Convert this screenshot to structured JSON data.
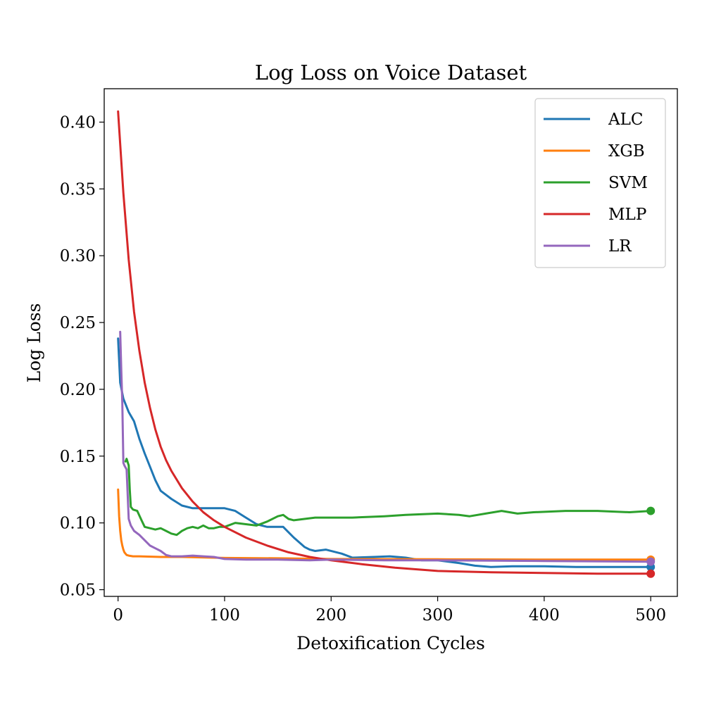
{
  "chart_data": {
    "type": "line",
    "title": "Log Loss on Voice Dataset",
    "xlabel": "Detoxification Cycles",
    "ylabel": "Log Loss",
    "xlim": [
      -13,
      525
    ],
    "ylim": [
      0.045,
      0.425
    ],
    "xticks": [
      0,
      100,
      200,
      300,
      400,
      500
    ],
    "yticks": [
      0.05,
      0.1,
      0.15,
      0.2,
      0.25,
      0.3,
      0.35,
      0.4
    ],
    "xtick_labels": [
      "0",
      "100",
      "200",
      "300",
      "400",
      "500"
    ],
    "ytick_labels": [
      "0.05",
      "0.10",
      "0.15",
      "0.20",
      "0.25",
      "0.30",
      "0.35",
      "0.40"
    ],
    "grid": false,
    "legend_position": "top-right",
    "series": [
      {
        "name": "ALC",
        "color": "#1f77b4",
        "end_marker": true,
        "points": [
          [
            0,
            0.238
          ],
          [
            2,
            0.205
          ],
          [
            5,
            0.193
          ],
          [
            10,
            0.183
          ],
          [
            15,
            0.176
          ],
          [
            20,
            0.163
          ],
          [
            25,
            0.152
          ],
          [
            30,
            0.142
          ],
          [
            35,
            0.132
          ],
          [
            40,
            0.124
          ],
          [
            45,
            0.121
          ],
          [
            50,
            0.118
          ],
          [
            60,
            0.113
          ],
          [
            70,
            0.111
          ],
          [
            100,
            0.111
          ],
          [
            110,
            0.109
          ],
          [
            120,
            0.104
          ],
          [
            130,
            0.099
          ],
          [
            140,
            0.097
          ],
          [
            155,
            0.097
          ],
          [
            165,
            0.089
          ],
          [
            175,
            0.082
          ],
          [
            180,
            0.08
          ],
          [
            185,
            0.079
          ],
          [
            195,
            0.08
          ],
          [
            210,
            0.077
          ],
          [
            220,
            0.074
          ],
          [
            240,
            0.0745
          ],
          [
            255,
            0.075
          ],
          [
            270,
            0.074
          ],
          [
            285,
            0.072
          ],
          [
            300,
            0.072
          ],
          [
            320,
            0.07
          ],
          [
            335,
            0.068
          ],
          [
            350,
            0.067
          ],
          [
            370,
            0.0675
          ],
          [
            400,
            0.0675
          ],
          [
            430,
            0.067
          ],
          [
            460,
            0.067
          ],
          [
            500,
            0.067
          ]
        ]
      },
      {
        "name": "XGB",
        "color": "#ff7f0e",
        "end_marker": true,
        "points": [
          [
            0,
            0.125
          ],
          [
            1,
            0.105
          ],
          [
            2,
            0.094
          ],
          [
            3,
            0.087
          ],
          [
            4,
            0.083
          ],
          [
            5,
            0.08
          ],
          [
            6,
            0.078
          ],
          [
            8,
            0.076
          ],
          [
            10,
            0.0755
          ],
          [
            14,
            0.075
          ],
          [
            20,
            0.075
          ],
          [
            40,
            0.0745
          ],
          [
            60,
            0.0745
          ],
          [
            100,
            0.0738
          ],
          [
            150,
            0.0735
          ],
          [
            200,
            0.073
          ],
          [
            300,
            0.0728
          ],
          [
            400,
            0.0725
          ],
          [
            500,
            0.0725
          ]
        ]
      },
      {
        "name": "SVM",
        "color": "#2ca02c",
        "end_marker": true,
        "points": [
          [
            7,
            0.146
          ],
          [
            8,
            0.148
          ],
          [
            10,
            0.143
          ],
          [
            11,
            0.125
          ],
          [
            12,
            0.112
          ],
          [
            14,
            0.11
          ],
          [
            18,
            0.109
          ],
          [
            22,
            0.102
          ],
          [
            25,
            0.097
          ],
          [
            30,
            0.096
          ],
          [
            35,
            0.095
          ],
          [
            40,
            0.096
          ],
          [
            45,
            0.094
          ],
          [
            50,
            0.092
          ],
          [
            55,
            0.091
          ],
          [
            60,
            0.094
          ],
          [
            65,
            0.096
          ],
          [
            70,
            0.097
          ],
          [
            75,
            0.096
          ],
          [
            80,
            0.098
          ],
          [
            85,
            0.096
          ],
          [
            90,
            0.096
          ],
          [
            95,
            0.097
          ],
          [
            100,
            0.097
          ],
          [
            110,
            0.1
          ],
          [
            120,
            0.099
          ],
          [
            130,
            0.098
          ],
          [
            140,
            0.101
          ],
          [
            150,
            0.105
          ],
          [
            155,
            0.106
          ],
          [
            160,
            0.103
          ],
          [
            165,
            0.102
          ],
          [
            175,
            0.103
          ],
          [
            185,
            0.104
          ],
          [
            200,
            0.104
          ],
          [
            220,
            0.104
          ],
          [
            250,
            0.105
          ],
          [
            270,
            0.106
          ],
          [
            300,
            0.107
          ],
          [
            320,
            0.106
          ],
          [
            330,
            0.105
          ],
          [
            345,
            0.107
          ],
          [
            360,
            0.109
          ],
          [
            375,
            0.107
          ],
          [
            390,
            0.108
          ],
          [
            420,
            0.109
          ],
          [
            450,
            0.109
          ],
          [
            480,
            0.108
          ],
          [
            500,
            0.109
          ]
        ]
      },
      {
        "name": "MLP",
        "color": "#d62728",
        "end_marker": true,
        "points": [
          [
            0,
            0.408
          ],
          [
            5,
            0.347
          ],
          [
            10,
            0.297
          ],
          [
            15,
            0.258
          ],
          [
            20,
            0.229
          ],
          [
            25,
            0.205
          ],
          [
            30,
            0.186
          ],
          [
            35,
            0.17
          ],
          [
            40,
            0.157
          ],
          [
            45,
            0.147
          ],
          [
            50,
            0.139
          ],
          [
            60,
            0.126
          ],
          [
            70,
            0.116
          ],
          [
            80,
            0.108
          ],
          [
            90,
            0.102
          ],
          [
            100,
            0.097
          ],
          [
            120,
            0.089
          ],
          [
            140,
            0.083
          ],
          [
            160,
            0.078
          ],
          [
            180,
            0.0745
          ],
          [
            200,
            0.072
          ],
          [
            230,
            0.069
          ],
          [
            260,
            0.0665
          ],
          [
            300,
            0.064
          ],
          [
            350,
            0.063
          ],
          [
            400,
            0.0625
          ],
          [
            450,
            0.062
          ],
          [
            500,
            0.062
          ]
        ]
      },
      {
        "name": "LR",
        "color": "#9467bd",
        "end_marker": true,
        "points": [
          [
            2,
            0.243
          ],
          [
            3,
            0.215
          ],
          [
            4,
            0.19
          ],
          [
            5,
            0.145
          ],
          [
            6,
            0.143
          ],
          [
            8,
            0.14
          ],
          [
            10,
            0.103
          ],
          [
            12,
            0.098
          ],
          [
            15,
            0.094
          ],
          [
            20,
            0.091
          ],
          [
            25,
            0.087
          ],
          [
            30,
            0.083
          ],
          [
            35,
            0.081
          ],
          [
            40,
            0.079
          ],
          [
            45,
            0.076
          ],
          [
            50,
            0.075
          ],
          [
            60,
            0.075
          ],
          [
            70,
            0.0755
          ],
          [
            80,
            0.075
          ],
          [
            90,
            0.0745
          ],
          [
            100,
            0.073
          ],
          [
            120,
            0.0725
          ],
          [
            150,
            0.0725
          ],
          [
            180,
            0.072
          ],
          [
            200,
            0.0725
          ],
          [
            250,
            0.072
          ],
          [
            300,
            0.072
          ],
          [
            400,
            0.0715
          ],
          [
            500,
            0.071
          ]
        ]
      }
    ]
  }
}
